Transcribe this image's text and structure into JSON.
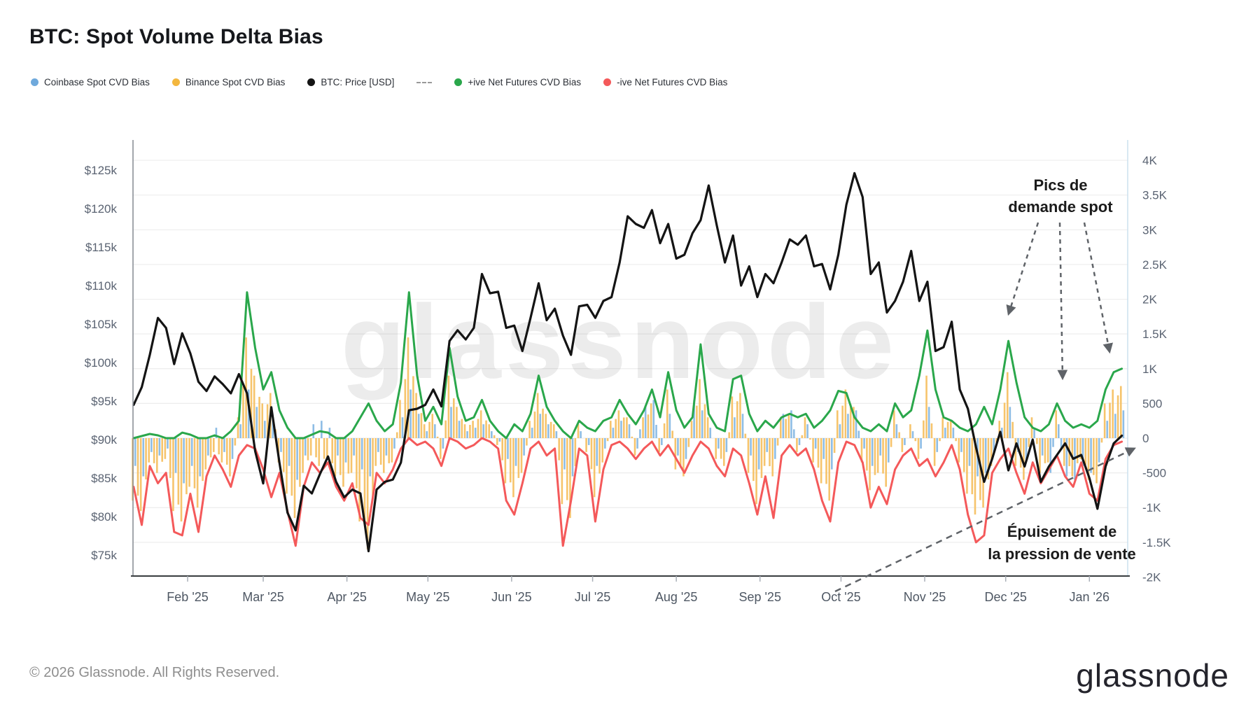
{
  "title": "BTC: Spot Volume Delta Bias",
  "watermark": "glassnode",
  "legend": {
    "items": [
      {
        "id": "coinbase",
        "label": "Coinbase Spot CVD Bias",
        "color": "#6fa9dc",
        "swatch": "dot"
      },
      {
        "id": "binance",
        "label": "Binance Spot CVD Bias",
        "color": "#f3b73f",
        "swatch": "dot"
      },
      {
        "id": "btc-price",
        "label": "BTC: Price [USD]",
        "color": "#141414",
        "swatch": "dot"
      },
      {
        "id": "annotation-style",
        "label": "",
        "color": "#9a9a9a",
        "swatch": "dash"
      },
      {
        "id": "pos-futures",
        "label": "+ive Net Futures CVD Bias",
        "color": "#2aa74b",
        "swatch": "dot"
      },
      {
        "id": "neg-futures",
        "label": "-ive Net Futures CVD Bias",
        "color": "#f4595a",
        "swatch": "dot"
      }
    ]
  },
  "annotations": {
    "spot_demand": {
      "line1": "Pics de",
      "line2": "demande spot"
    },
    "sell_exhaustion": {
      "line1": "Épuisement de",
      "line2": "la pression de vente"
    },
    "arrow_color": "#5f6368",
    "text_color": "#1b1b1b"
  },
  "footer": {
    "copyright": "© 2026 Glassnode. All Rights Reserved.",
    "logo_text": "glassnode"
  },
  "chart_data": {
    "type": "mixed-bar-line",
    "start_date": "2025-01-12",
    "interval_days": 3,
    "grid": true,
    "x_axis": {
      "tick_labels": [
        "Feb '25",
        "Mar '25",
        "Apr '25",
        "May '25",
        "Jun '25",
        "Jul '25",
        "Aug '25",
        "Sep '25",
        "Oct '25",
        "Nov '25",
        "Dec '25",
        "Jan '26"
      ],
      "tick_day_offsets": [
        20,
        48,
        79,
        109,
        140,
        170,
        201,
        232,
        262,
        293,
        323,
        354
      ]
    },
    "left_axis": {
      "unit": "USD",
      "tick_labels": [
        "$125k",
        "$120k",
        "$115k",
        "$110k",
        "$105k",
        "$100k",
        "$95k",
        "$90k",
        "$85k",
        "$80k",
        "$75k"
      ],
      "tick_values_k": [
        125,
        120,
        115,
        110,
        105,
        100,
        95,
        90,
        85,
        80,
        75
      ],
      "range_k": [
        75,
        125
      ]
    },
    "right_axis": {
      "tick_labels": [
        "4K",
        "3.5K",
        "3K",
        "2.5K",
        "2K",
        "1.5K",
        "1K",
        "500",
        "0",
        "-500",
        "-1K",
        "-1.5K",
        "-2K"
      ],
      "tick_values": [
        4000,
        3500,
        3000,
        2500,
        2000,
        1500,
        1000,
        500,
        0,
        -500,
        -1000,
        -1500,
        -2000
      ],
      "range": [
        -2000,
        4000
      ]
    },
    "series": [
      {
        "name": "BTC: Price [USD]",
        "type": "line",
        "axis": "left",
        "color": "#141414",
        "values_usd_k": [
          94.5,
          96.8,
          101.0,
          105.8,
          104.5,
          99.8,
          103.8,
          101.2,
          97.5,
          96.3,
          98.2,
          97.2,
          96.0,
          98.5,
          96.0,
          88.5,
          84.3,
          94.2,
          87.0,
          80.5,
          78.2,
          84.0,
          83.0,
          85.5,
          87.8,
          84.5,
          82.5,
          83.5,
          83.0,
          75.5,
          83.5,
          84.5,
          84.8,
          87.0,
          93.8,
          94.0,
          94.5,
          96.5,
          94.3,
          102.8,
          104.2,
          103.0,
          104.5,
          111.5,
          109.0,
          109.2,
          104.5,
          104.8,
          101.5,
          105.8,
          110.3,
          105.5,
          107.0,
          103.5,
          101.0,
          107.3,
          107.5,
          105.8,
          108.0,
          108.5,
          113.0,
          119.0,
          118.0,
          117.5,
          119.8,
          115.5,
          118.0,
          113.5,
          114.0,
          116.8,
          118.5,
          123.0,
          117.8,
          113.0,
          116.5,
          110.0,
          112.5,
          108.5,
          111.5,
          110.3,
          113.0,
          116.0,
          115.3,
          116.5,
          112.5,
          112.8,
          109.5,
          114.0,
          120.5,
          124.6,
          121.5,
          111.5,
          113.0,
          106.5,
          108.0,
          110.5,
          114.5,
          108.0,
          110.5,
          101.5,
          102.0,
          105.3,
          96.5,
          94.0,
          89.0,
          84.5,
          87.5,
          91.0,
          86.0,
          89.5,
          86.5,
          90.0,
          84.5,
          86.5,
          88.0,
          89.5,
          87.5,
          88.0,
          85.0,
          81.0,
          86.5,
          89.5,
          90.5
        ]
      },
      {
        "name": "+ive Net Futures CVD Bias",
        "type": "line",
        "axis": "right",
        "color": "#2aa74b",
        "values": [
          0,
          30,
          60,
          40,
          0,
          0,
          80,
          50,
          0,
          0,
          40,
          0,
          100,
          250,
          2100,
          1300,
          700,
          950,
          400,
          150,
          0,
          0,
          50,
          100,
          80,
          0,
          0,
          100,
          300,
          500,
          250,
          100,
          200,
          800,
          2100,
          900,
          250,
          450,
          200,
          1300,
          600,
          250,
          300,
          550,
          250,
          100,
          0,
          200,
          100,
          350,
          900,
          450,
          250,
          100,
          0,
          250,
          150,
          100,
          250,
          300,
          550,
          350,
          200,
          400,
          700,
          300,
          950,
          400,
          150,
          300,
          1350,
          350,
          150,
          100,
          850,
          900,
          350,
          100,
          250,
          150,
          300,
          350,
          300,
          350,
          150,
          250,
          400,
          680,
          650,
          300,
          150,
          100,
          200,
          100,
          500,
          300,
          400,
          900,
          1550,
          700,
          300,
          250,
          150,
          100,
          200,
          450,
          200,
          700,
          1400,
          800,
          300,
          150,
          100,
          200,
          500,
          250,
          150,
          200,
          150,
          250,
          700,
          950,
          1000
        ]
      },
      {
        "name": "-ive Net Futures CVD Bias",
        "type": "line",
        "axis": "right",
        "color": "#f4595a",
        "values": [
          -700,
          -1250,
          -400,
          -650,
          -500,
          -1350,
          -1400,
          -800,
          -1350,
          -550,
          -250,
          -450,
          -700,
          -250,
          -100,
          -150,
          -450,
          -850,
          -500,
          -1050,
          -1550,
          -700,
          -350,
          -500,
          -350,
          -700,
          -900,
          -650,
          -1150,
          -1250,
          -500,
          -650,
          -450,
          -150,
          0,
          -100,
          -50,
          -150,
          -400,
          0,
          -50,
          -150,
          -100,
          0,
          -50,
          -150,
          -900,
          -1100,
          -650,
          -150,
          -50,
          -250,
          -150,
          -1550,
          -900,
          -150,
          -250,
          -1200,
          -450,
          -100,
          -50,
          -150,
          -300,
          -150,
          -50,
          -250,
          -100,
          -300,
          -500,
          -250,
          -50,
          -150,
          -400,
          -550,
          -150,
          -250,
          -650,
          -1100,
          -550,
          -1150,
          -250,
          -100,
          -250,
          -150,
          -450,
          -900,
          -1200,
          -350,
          -50,
          -100,
          -350,
          -1000,
          -700,
          -950,
          -450,
          -250,
          -150,
          -400,
          -300,
          -550,
          -350,
          -100,
          -450,
          -1100,
          -1500,
          -1400,
          -500,
          -300,
          -150,
          -500,
          -800,
          -350,
          -650,
          -450,
          -250,
          -550,
          -700,
          -350,
          -800,
          -900,
          -300,
          -100,
          -50
        ]
      },
      {
        "name": "Binance Spot CVD Bias",
        "type": "bar",
        "axis": "right",
        "color": "#f5c164",
        "values": [
          -900,
          -1050,
          -350,
          -500,
          -300,
          -1050,
          -1200,
          -700,
          -1000,
          -450,
          -200,
          -350,
          -550,
          300,
          1450,
          900,
          500,
          650,
          -350,
          -800,
          -1150,
          -500,
          -250,
          -400,
          -300,
          -550,
          -700,
          -500,
          -1200,
          -1600,
          -400,
          -500,
          -350,
          550,
          1450,
          650,
          200,
          350,
          -300,
          900,
          450,
          200,
          250,
          400,
          200,
          -100,
          -650,
          -850,
          -500,
          250,
          650,
          350,
          200,
          -950,
          -1150,
          200,
          -200,
          -850,
          -350,
          250,
          400,
          300,
          -250,
          300,
          500,
          -200,
          700,
          -450,
          -550,
          250,
          850,
          300,
          -300,
          -400,
          600,
          650,
          -500,
          -950,
          -400,
          -550,
          300,
          350,
          -200,
          300,
          -350,
          -650,
          -900,
          400,
          700,
          450,
          -350,
          -750,
          -500,
          -700,
          400,
          -200,
          200,
          -300,
          900,
          -400,
          300,
          250,
          -350,
          -800,
          -1100,
          -1000,
          -400,
          250,
          950,
          -400,
          -600,
          300,
          -500,
          -350,
          400,
          -400,
          -550,
          -300,
          -600,
          -650,
          500,
          700,
          750
        ]
      },
      {
        "name": "Coinbase Spot CVD Bias",
        "type": "bar",
        "axis": "right",
        "color": "#88b9e4",
        "values": [
          -400,
          -550,
          -200,
          -250,
          -150,
          -500,
          -650,
          -400,
          -550,
          -250,
          150,
          -200,
          -300,
          200,
          700,
          450,
          250,
          300,
          -200,
          -400,
          -600,
          -250,
          200,
          250,
          150,
          -250,
          -350,
          -250,
          -450,
          -550,
          -200,
          -250,
          -150,
          300,
          700,
          350,
          100,
          200,
          -150,
          450,
          250,
          100,
          150,
          200,
          100,
          -50,
          -300,
          -400,
          -250,
          150,
          350,
          200,
          100,
          -450,
          -550,
          100,
          -100,
          -400,
          -150,
          150,
          250,
          200,
          -150,
          450,
          550,
          -100,
          350,
          -250,
          -300,
          550,
          400,
          150,
          -150,
          -200,
          300,
          350,
          -250,
          -450,
          -200,
          -300,
          350,
          400,
          -100,
          200,
          -150,
          -300,
          -450,
          200,
          350,
          400,
          -150,
          -400,
          -250,
          -350,
          200,
          -100,
          100,
          -150,
          450,
          -200,
          150,
          150,
          -200,
          -400,
          -550,
          -500,
          -200,
          150,
          450,
          -200,
          -300,
          150,
          -250,
          -500,
          200,
          -550,
          -600,
          -400,
          -500,
          -350,
          250,
          350,
          400
        ]
      }
    ]
  }
}
